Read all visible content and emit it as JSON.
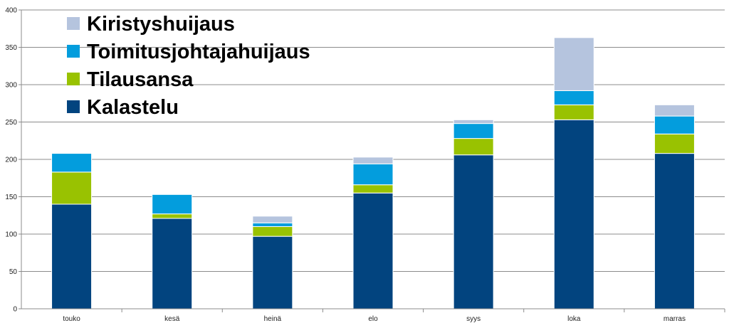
{
  "chart_data": {
    "type": "bar",
    "stacked": true,
    "categories": [
      "touko",
      "kesä",
      "heinä",
      "elo",
      "syys",
      "loka",
      "marras"
    ],
    "series": [
      {
        "name": "Kalastelu",
        "color": "#02447f",
        "values": [
          140,
          121,
          97,
          155,
          206,
          253,
          208
        ]
      },
      {
        "name": "Tilausansa",
        "color": "#99c201",
        "values": [
          43,
          6,
          13,
          11,
          22,
          20,
          26
        ]
      },
      {
        "name": "Toimitusjohtajahuijaus",
        "color": "#039ddd",
        "values": [
          25,
          26,
          5,
          28,
          20,
          19,
          24
        ]
      },
      {
        "name": "Kiristyshuijaus",
        "color": "#b5c4de",
        "values": [
          0,
          0,
          9,
          9,
          5,
          71,
          15
        ]
      }
    ],
    "legend_order": [
      "Kiristyshuijaus",
      "Toimitusjohtajahuijaus",
      "Tilausansa",
      "Kalastelu"
    ],
    "yticks": [
      0,
      50,
      100,
      150,
      200,
      250,
      300,
      350,
      400
    ],
    "ylim": [
      0,
      400
    ],
    "grid": true,
    "legend_position": "top-left"
  }
}
